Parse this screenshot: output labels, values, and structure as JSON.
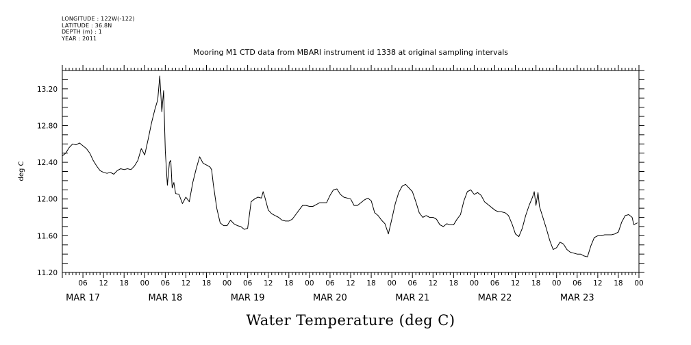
{
  "header": {
    "longitude": "LONGITUDE : 122W(-122)",
    "latitude": "LATITUDE : 36.8N",
    "depth": "DEPTH (m) : 1",
    "year": "YEAR : 2011"
  },
  "chart_data": {
    "type": "line",
    "title": "Mooring M1 CTD data from MBARI instrument id 1338 at original sampling intervals",
    "xlabel": "Water Temperature (deg C)",
    "ylabel": "deg C",
    "xlim": [
      0,
      168
    ],
    "ylim": [
      11.2,
      13.4
    ],
    "x_units": "hours since MAR 17 00",
    "y_ticks": [
      11.2,
      11.6,
      12.0,
      12.4,
      12.8,
      13.2
    ],
    "y_tick_labels": [
      "11.20",
      "11.60",
      "12.00",
      "12.40",
      "12.80",
      "13.20"
    ],
    "x_hour_labels": [
      "06",
      "12",
      "18",
      "00",
      "06",
      "12",
      "18",
      "00",
      "06",
      "12",
      "18",
      "00",
      "06",
      "12",
      "18",
      "00",
      "06",
      "12",
      "18",
      "00",
      "06",
      "12",
      "18",
      "00",
      "06",
      "12",
      "18",
      "00"
    ],
    "x_hour_positions": [
      6,
      12,
      18,
      24,
      30,
      36,
      42,
      48,
      54,
      60,
      66,
      72,
      78,
      84,
      90,
      96,
      102,
      108,
      114,
      120,
      126,
      132,
      138,
      144,
      150,
      156,
      162,
      168
    ],
    "day_labels": [
      "MAR 17",
      "MAR 18",
      "MAR 19",
      "MAR 20",
      "MAR 21",
      "MAR 22",
      "MAR 23"
    ],
    "day_positions": [
      6,
      30,
      54,
      78,
      102,
      126,
      150
    ],
    "series": [
      {
        "values": [
          [
            0,
            12.47
          ],
          [
            1,
            12.5
          ],
          [
            2,
            12.56
          ],
          [
            3,
            12.6
          ],
          [
            4,
            12.59
          ],
          [
            5,
            12.61
          ],
          [
            6,
            12.58
          ],
          [
            7,
            12.55
          ],
          [
            8,
            12.5
          ],
          [
            9,
            12.42
          ],
          [
            10,
            12.36
          ],
          [
            11,
            12.31
          ],
          [
            12,
            12.29
          ],
          [
            13,
            12.28
          ],
          [
            14,
            12.29
          ],
          [
            15,
            12.27
          ],
          [
            16,
            12.31
          ],
          [
            17,
            12.33
          ],
          [
            18,
            12.32
          ],
          [
            19,
            12.33
          ],
          [
            20,
            12.32
          ],
          [
            21,
            12.36
          ],
          [
            22,
            12.42
          ],
          [
            23,
            12.55
          ],
          [
            24,
            12.48
          ],
          [
            25,
            12.65
          ],
          [
            26,
            12.83
          ],
          [
            27,
            12.98
          ],
          [
            27.8,
            13.08
          ],
          [
            28.4,
            13.34
          ],
          [
            29,
            12.95
          ],
          [
            29.5,
            13.18
          ],
          [
            30,
            12.52
          ],
          [
            30.6,
            12.15
          ],
          [
            31.2,
            12.4
          ],
          [
            31.6,
            12.42
          ],
          [
            32,
            12.12
          ],
          [
            32.5,
            12.18
          ],
          [
            33,
            12.06
          ],
          [
            34,
            12.05
          ],
          [
            35,
            11.95
          ],
          [
            36,
            12.02
          ],
          [
            37,
            11.97
          ],
          [
            38,
            12.18
          ],
          [
            39,
            12.33
          ],
          [
            40,
            12.46
          ],
          [
            41,
            12.39
          ],
          [
            42,
            12.37
          ],
          [
            43,
            12.35
          ],
          [
            43.5,
            12.32
          ],
          [
            44,
            12.16
          ],
          [
            45,
            11.9
          ],
          [
            46,
            11.74
          ],
          [
            47,
            11.71
          ],
          [
            48,
            11.71
          ],
          [
            49,
            11.77
          ],
          [
            50,
            11.73
          ],
          [
            51,
            11.71
          ],
          [
            52,
            11.7
          ],
          [
            53,
            11.67
          ],
          [
            54,
            11.68
          ],
          [
            55,
            11.97
          ],
          [
            56,
            12.0
          ],
          [
            57,
            12.02
          ],
          [
            58,
            12.01
          ],
          [
            58.5,
            12.08
          ],
          [
            59,
            12.02
          ],
          [
            60,
            11.88
          ],
          [
            61,
            11.84
          ],
          [
            62,
            11.82
          ],
          [
            63,
            11.8
          ],
          [
            64,
            11.77
          ],
          [
            65,
            11.76
          ],
          [
            66,
            11.76
          ],
          [
            67,
            11.78
          ],
          [
            68,
            11.83
          ],
          [
            69,
            11.88
          ],
          [
            70,
            11.93
          ],
          [
            71,
            11.93
          ],
          [
            72,
            11.92
          ],
          [
            73,
            11.92
          ],
          [
            74,
            11.94
          ],
          [
            75,
            11.96
          ],
          [
            76,
            11.96
          ],
          [
            77,
            11.96
          ],
          [
            78,
            12.04
          ],
          [
            79,
            12.1
          ],
          [
            80,
            12.11
          ],
          [
            81,
            12.05
          ],
          [
            82,
            12.02
          ],
          [
            83,
            12.01
          ],
          [
            84,
            12.0
          ],
          [
            85,
            11.93
          ],
          [
            86,
            11.93
          ],
          [
            87,
            11.96
          ],
          [
            88,
            11.99
          ],
          [
            89,
            12.01
          ],
          [
            90,
            11.98
          ],
          [
            91,
            11.85
          ],
          [
            92,
            11.82
          ],
          [
            93,
            11.77
          ],
          [
            94,
            11.73
          ],
          [
            95,
            11.62
          ],
          [
            96,
            11.78
          ],
          [
            97,
            11.95
          ],
          [
            98,
            12.07
          ],
          [
            99,
            12.14
          ],
          [
            100,
            12.16
          ],
          [
            101,
            12.12
          ],
          [
            102,
            12.08
          ],
          [
            103,
            11.97
          ],
          [
            104,
            11.85
          ],
          [
            105,
            11.8
          ],
          [
            106,
            11.82
          ],
          [
            107,
            11.8
          ],
          [
            108,
            11.8
          ],
          [
            109,
            11.78
          ],
          [
            110,
            11.72
          ],
          [
            111,
            11.7
          ],
          [
            112,
            11.73
          ],
          [
            113,
            11.72
          ],
          [
            114,
            11.72
          ],
          [
            115,
            11.78
          ],
          [
            116,
            11.83
          ],
          [
            117,
            11.98
          ],
          [
            118,
            12.08
          ],
          [
            119,
            12.1
          ],
          [
            120,
            12.05
          ],
          [
            121,
            12.07
          ],
          [
            122,
            12.04
          ],
          [
            123,
            11.97
          ],
          [
            124,
            11.94
          ],
          [
            125,
            11.91
          ],
          [
            126,
            11.88
          ],
          [
            127,
            11.86
          ],
          [
            128,
            11.86
          ],
          [
            129,
            11.85
          ],
          [
            130,
            11.82
          ],
          [
            131,
            11.73
          ],
          [
            132,
            11.62
          ],
          [
            133,
            11.59
          ],
          [
            134,
            11.68
          ],
          [
            135,
            11.82
          ],
          [
            136,
            11.93
          ],
          [
            137,
            12.02
          ],
          [
            137.5,
            12.08
          ],
          [
            138,
            11.93
          ],
          [
            138.6,
            12.07
          ],
          [
            139,
            11.92
          ],
          [
            140,
            11.8
          ],
          [
            141,
            11.68
          ],
          [
            142,
            11.55
          ],
          [
            143,
            11.45
          ],
          [
            144,
            11.47
          ],
          [
            145,
            11.53
          ],
          [
            146,
            11.51
          ],
          [
            147,
            11.45
          ],
          [
            148,
            11.42
          ],
          [
            149,
            11.41
          ],
          [
            150,
            11.4
          ],
          [
            151,
            11.4
          ],
          [
            152,
            11.38
          ],
          [
            153,
            11.37
          ],
          [
            154,
            11.49
          ],
          [
            155,
            11.58
          ],
          [
            156,
            11.6
          ],
          [
            157,
            11.6
          ],
          [
            158,
            11.61
          ],
          [
            159,
            11.61
          ],
          [
            160,
            11.61
          ],
          [
            161,
            11.62
          ],
          [
            162,
            11.64
          ],
          [
            163,
            11.75
          ],
          [
            164,
            11.82
          ],
          [
            165,
            11.83
          ],
          [
            166,
            11.8
          ],
          [
            166.5,
            11.72
          ],
          [
            167,
            11.73
          ],
          [
            167.6,
            11.74
          ]
        ]
      }
    ]
  }
}
